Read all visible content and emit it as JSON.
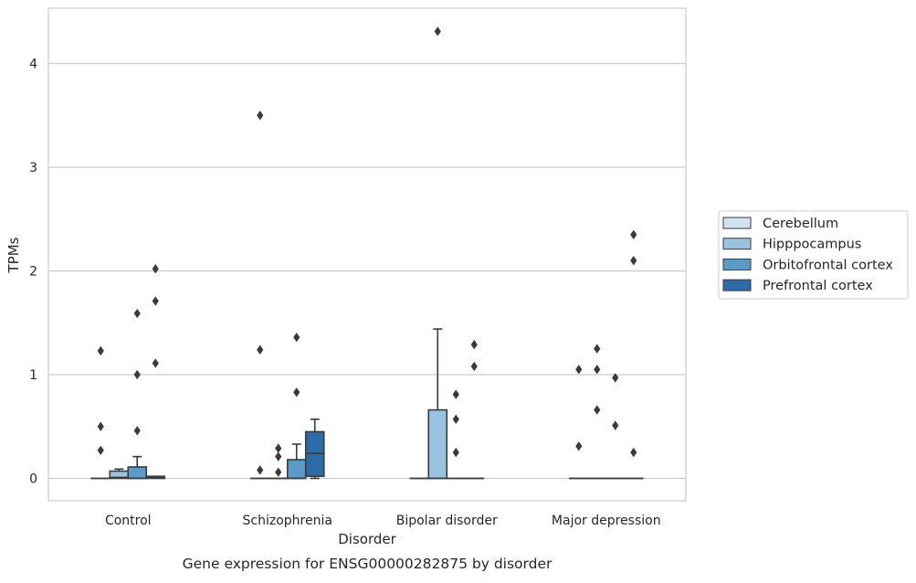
{
  "chart_data": {
    "type": "box",
    "title": "",
    "caption": "Gene expression for ENSG00000282875 by disorder",
    "xlabel": "Disorder",
    "ylabel": "TPMs",
    "categories": [
      "Control",
      "Schizophrenia",
      "Bipolar disorder",
      "Major depression"
    ],
    "ylim": [
      -0.2,
      4.55
    ],
    "yticks": [
      0,
      1,
      2,
      3,
      4
    ],
    "grid": "y",
    "legend_position": "right",
    "series": [
      {
        "name": "Cerebellum",
        "color": "#d1e2f1",
        "boxes": [
          {
            "category": "Control",
            "q1": 0,
            "median": 0,
            "q3": 0,
            "whisker_low": 0,
            "whisker_high": 0,
            "outliers": [
              0.27,
              0.5,
              1.23
            ]
          },
          {
            "category": "Schizophrenia",
            "q1": 0,
            "median": 0,
            "q3": 0,
            "whisker_low": 0,
            "whisker_high": 0,
            "outliers": [
              0.08,
              1.24,
              3.5
            ]
          },
          {
            "category": "Bipolar disorder",
            "q1": 0,
            "median": 0,
            "q3": 0,
            "whisker_low": 0,
            "whisker_high": 0,
            "outliers": []
          },
          {
            "category": "Major depression",
            "q1": 0,
            "median": 0,
            "q3": 0,
            "whisker_low": 0,
            "whisker_high": 0,
            "outliers": [
              0.31,
              1.05
            ]
          }
        ]
      },
      {
        "name": "Hipppocampus",
        "color": "#9ac3e0",
        "boxes": [
          {
            "category": "Control",
            "q1": 0,
            "median": 0.01,
            "q3": 0.07,
            "whisker_low": 0,
            "whisker_high": 0.09,
            "outliers": []
          },
          {
            "category": "Schizophrenia",
            "q1": 0,
            "median": 0,
            "q3": 0,
            "whisker_low": 0,
            "whisker_high": 0,
            "outliers": [
              0.06,
              0.21,
              0.29
            ]
          },
          {
            "category": "Bipolar disorder",
            "q1": 0,
            "median": 0,
            "q3": 0.66,
            "whisker_low": 0,
            "whisker_high": 1.44,
            "outliers": [
              4.31
            ]
          },
          {
            "category": "Major depression",
            "q1": 0,
            "median": 0,
            "q3": 0,
            "whisker_low": 0,
            "whisker_high": 0,
            "outliers": [
              0.66,
              1.05,
              1.25
            ]
          }
        ]
      },
      {
        "name": "Orbitofrontal cortex",
        "color": "#5b9bc9",
        "boxes": [
          {
            "category": "Control",
            "q1": 0,
            "median": 0,
            "q3": 0.11,
            "whisker_low": 0,
            "whisker_high": 0.21,
            "outliers": [
              0.46,
              1.0,
              1.59
            ]
          },
          {
            "category": "Schizophrenia",
            "q1": 0,
            "median": 0,
            "q3": 0.18,
            "whisker_low": 0,
            "whisker_high": 0.33,
            "outliers": [
              0.83,
              1.36
            ]
          },
          {
            "category": "Bipolar disorder",
            "q1": 0,
            "median": 0,
            "q3": 0,
            "whisker_low": 0,
            "whisker_high": 0,
            "outliers": [
              0.25,
              0.57,
              0.81
            ]
          },
          {
            "category": "Major depression",
            "q1": 0,
            "median": 0,
            "q3": 0,
            "whisker_low": 0,
            "whisker_high": 0,
            "outliers": [
              0.51,
              0.97
            ]
          }
        ]
      },
      {
        "name": "Prefrontal cortex",
        "color": "#2b6ca8",
        "boxes": [
          {
            "category": "Control",
            "q1": 0,
            "median": 0.01,
            "q3": 0.02,
            "whisker_low": 0,
            "whisker_high": 0.02,
            "outliers": [
              1.11,
              1.71,
              2.02
            ]
          },
          {
            "category": "Schizophrenia",
            "q1": 0.02,
            "median": 0.24,
            "q3": 0.45,
            "whisker_low": 0,
            "whisker_high": 0.57,
            "outliers": []
          },
          {
            "category": "Bipolar disorder",
            "q1": 0,
            "median": 0,
            "q3": 0,
            "whisker_low": 0,
            "whisker_high": 0,
            "outliers": [
              1.08,
              1.29
            ]
          },
          {
            "category": "Major depression",
            "q1": 0,
            "median": 0,
            "q3": 0,
            "whisker_low": 0,
            "whisker_high": 0,
            "outliers": [
              0.25,
              2.1,
              2.35
            ]
          }
        ]
      }
    ]
  }
}
